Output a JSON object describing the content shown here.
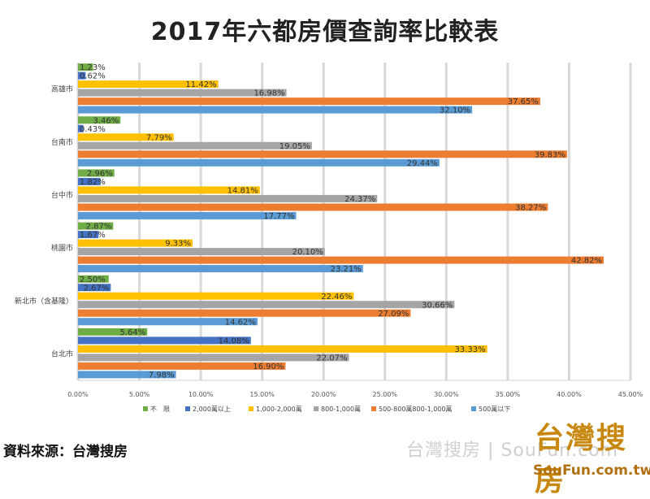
{
  "chart_data": {
    "type": "bar",
    "orientation": "horizontal",
    "title": "2017年六都房價查詢率比較表",
    "categories": [
      "高雄市",
      "台南市",
      "台中市",
      "桃園市",
      "新北市（含基隆）",
      "台北市"
    ],
    "series": [
      {
        "name": "不　限",
        "color": "#70ad47",
        "values": [
          1.23,
          3.46,
          2.96,
          2.87,
          2.5,
          5.64
        ],
        "labels": [
          "1.23%",
          "3.46%",
          "2.96%",
          "2.87%",
          "2.50%",
          "5.64%"
        ]
      },
      {
        "name": "2,000萬以上",
        "color": "#4472c4",
        "values": [
          0.62,
          0.43,
          1.82,
          1.67,
          2.67,
          14.08
        ],
        "labels": [
          "0.62%",
          "0.43%",
          "1.82%",
          "1.67%",
          "2.67%",
          "14.08%"
        ]
      },
      {
        "name": "1,000-2,000萬",
        "color": "#ffc000",
        "values": [
          11.42,
          7.79,
          14.81,
          9.33,
          22.46,
          33.33
        ],
        "labels": [
          "11.42%",
          "7.79%",
          "14.81%",
          "9.33%",
          "22.46%",
          "33.33%"
        ]
      },
      {
        "name": "800-1,000萬",
        "color": "#a5a5a5",
        "values": [
          16.98,
          19.05,
          24.37,
          20.1,
          30.66,
          22.07
        ],
        "labels": [
          "16.98%",
          "19.05%",
          "24.37%",
          "20.10%",
          "30.66%",
          "22.07%"
        ]
      },
      {
        "name": "500-800萬800-1,000萬",
        "color": "#ed7d31",
        "values": [
          37.65,
          39.83,
          38.27,
          42.82,
          27.09,
          16.9
        ],
        "labels": [
          "37.65%",
          "39.83%",
          "38.27%",
          "42.82%",
          "27.09%",
          "16.90%"
        ]
      },
      {
        "name": "500萬以下",
        "color": "#5b9bd5",
        "values": [
          32.1,
          29.44,
          17.77,
          23.21,
          14.62,
          7.98
        ],
        "labels": [
          "32.10%",
          "29.44%",
          "17.77%",
          "23.21%",
          "14.62%",
          "7.98%"
        ]
      }
    ],
    "xlim": [
      0,
      45
    ],
    "x_ticks": [
      0,
      5,
      10,
      15,
      20,
      25,
      30,
      35,
      40,
      45
    ],
    "x_tick_labels": [
      "0.00%",
      "5.00%",
      "10.00%",
      "15.00%",
      "20.00%",
      "25.00%",
      "30.00%",
      "35.00%",
      "40.00%",
      "45.00%"
    ],
    "grid": true,
    "legend_position": "bottom"
  },
  "footer": {
    "source": "資料來源：台灣搜房",
    "watermark": "台灣搜房 | SouFun.com",
    "logo_brand": "台灣搜房",
    "logo_site": "SouFun.com.tw"
  }
}
